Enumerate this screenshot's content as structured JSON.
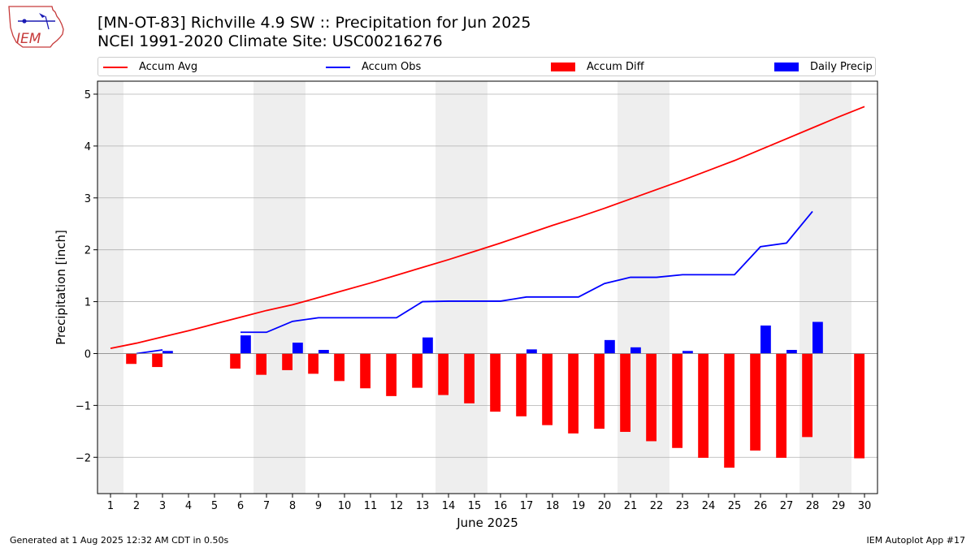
{
  "header": {
    "logo_text": "IEM",
    "title_line1": "[MN-OT-83] Richville 4.9 SW :: Precipitation for Jun 2025",
    "title_line2": "NCEI 1991-2020 Climate Site: USC00216276"
  },
  "legend": {
    "accum_avg": "Accum Avg",
    "accum_obs": "Accum Obs",
    "accum_diff": "Accum Diff",
    "daily_precip": "Daily Precip"
  },
  "footer": {
    "left": "Generated at 1 Aug 2025 12:32 AM CDT in 0.50s",
    "right": "IEM Autoplot App #17"
  },
  "colors": {
    "avg": "#ff0000",
    "obs": "#0000ff",
    "diff": "#ff0000",
    "daily": "#0000ff",
    "weekend_band": "#eeeeee",
    "grid": "#b0b0b0"
  },
  "chart_data": {
    "type": "bar",
    "xlabel": "June 2025",
    "ylabel": "Precipitation [inch]",
    "xlim": [
      0.5,
      30.5
    ],
    "ylim": [
      -2.7,
      5.25
    ],
    "yticks": [
      -2,
      -1,
      0,
      1,
      2,
      3,
      4,
      5
    ],
    "ytick_labels": [
      "−2",
      "−1",
      "0",
      "1",
      "2",
      "3",
      "4",
      "5"
    ],
    "xticks": [
      1,
      2,
      3,
      4,
      5,
      6,
      7,
      8,
      9,
      10,
      11,
      12,
      13,
      14,
      15,
      16,
      17,
      18,
      19,
      20,
      21,
      22,
      23,
      24,
      25,
      26,
      27,
      28,
      29,
      30
    ],
    "xtick_labels": [
      "1",
      "2",
      "3",
      "4",
      "5",
      "6",
      "7",
      "8",
      "9",
      "10",
      "11",
      "12",
      "13",
      "14",
      "15",
      "16",
      "17",
      "18",
      "19",
      "20",
      "21",
      "22",
      "23",
      "24",
      "25",
      "26",
      "27",
      "28",
      "29",
      "30"
    ],
    "grid": "y",
    "weekend_bands": [
      [
        0.5,
        1.5
      ],
      [
        6.5,
        8.5
      ],
      [
        13.5,
        15.5
      ],
      [
        20.5,
        22.5
      ],
      [
        27.5,
        29.5
      ]
    ],
    "series": [
      {
        "name": "Accum Avg",
        "type": "line",
        "x": [
          1,
          2,
          3,
          4,
          5,
          6,
          7,
          8,
          9,
          10,
          11,
          12,
          13,
          14,
          15,
          16,
          17,
          18,
          19,
          20,
          21,
          22,
          23,
          24,
          25,
          26,
          27,
          28,
          29,
          30
        ],
        "values": [
          0.1,
          0.2,
          0.32,
          0.44,
          0.57,
          0.7,
          0.83,
          0.94,
          1.08,
          1.22,
          1.36,
          1.51,
          1.66,
          1.81,
          1.97,
          2.13,
          2.3,
          2.47,
          2.63,
          2.8,
          2.98,
          3.16,
          3.34,
          3.53,
          3.72,
          3.93,
          4.14,
          4.35,
          4.56,
          4.76
        ]
      },
      {
        "name": "Accum Obs",
        "type": "line",
        "x": [
          2,
          3,
          null,
          6,
          7,
          8,
          9,
          10,
          11,
          12,
          13,
          14,
          15,
          16,
          17,
          18,
          19,
          20,
          21,
          22,
          23,
          24,
          25,
          26,
          27,
          28
        ],
        "values": [
          0.0,
          0.07,
          null,
          0.41,
          0.41,
          0.62,
          0.69,
          0.69,
          0.69,
          0.69,
          1.0,
          1.01,
          1.01,
          1.01,
          1.09,
          1.09,
          1.09,
          1.35,
          1.47,
          1.47,
          1.52,
          1.52,
          1.52,
          2.06,
          2.13,
          2.74
        ]
      },
      {
        "name": "Accum Diff",
        "type": "bar",
        "x": [
          2,
          3,
          6,
          7,
          8,
          9,
          10,
          11,
          12,
          13,
          14,
          15,
          16,
          17,
          18,
          19,
          20,
          21,
          22,
          23,
          24,
          25,
          26,
          27,
          28,
          30
        ],
        "values": [
          -0.2,
          -0.26,
          -0.29,
          -0.41,
          -0.32,
          -0.39,
          -0.53,
          -0.67,
          -0.82,
          -0.66,
          -0.8,
          -0.96,
          -1.12,
          -1.21,
          -1.38,
          -1.54,
          -1.45,
          -1.51,
          -1.69,
          -1.82,
          -2.01,
          -2.2,
          -1.87,
          -2.01,
          -1.61,
          -2.02
        ]
      },
      {
        "name": "Daily Precip",
        "type": "bar",
        "x": [
          3,
          6,
          8,
          9,
          13,
          17,
          20,
          21,
          23,
          26,
          27,
          28
        ],
        "values": [
          0.05,
          0.35,
          0.21,
          0.07,
          0.31,
          0.08,
          0.26,
          0.12,
          0.05,
          0.54,
          0.07,
          0.61
        ]
      }
    ]
  }
}
